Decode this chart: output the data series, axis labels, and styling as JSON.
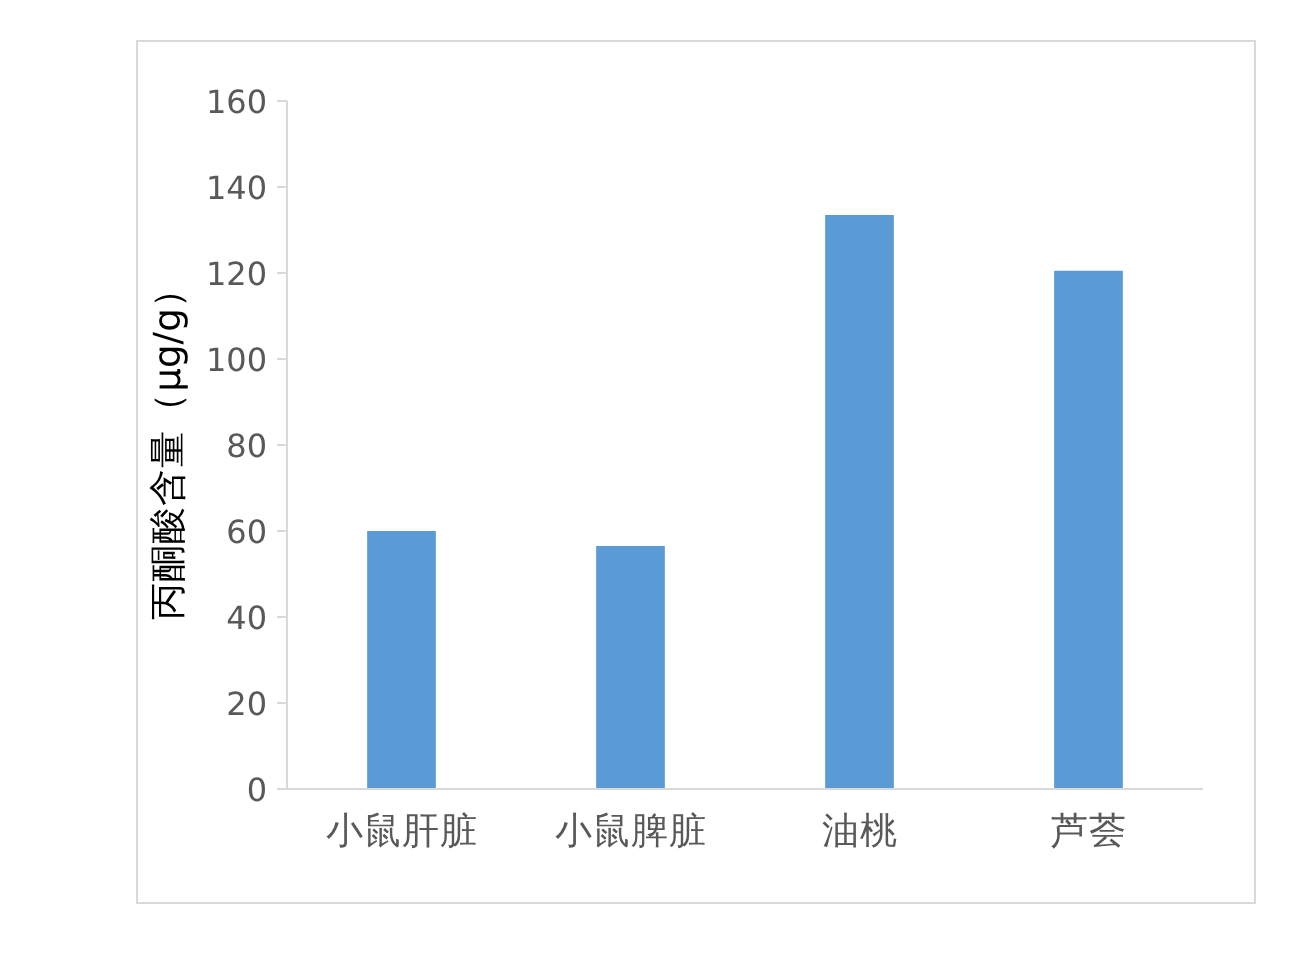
{
  "chart_data": {
    "type": "bar",
    "ylabel": "丙酮酸含量（μg/g）",
    "categories": [
      "小鼠肝脏",
      "小鼠脾脏",
      "油桃",
      "芦荟"
    ],
    "values": [
      60,
      56.5,
      133.5,
      120.5
    ],
    "color": "#5b9bd5",
    "ylim": [
      0,
      160
    ],
    "yticks": [
      0,
      20,
      40,
      60,
      80,
      100,
      120,
      140,
      160
    ],
    "grid": false
  }
}
